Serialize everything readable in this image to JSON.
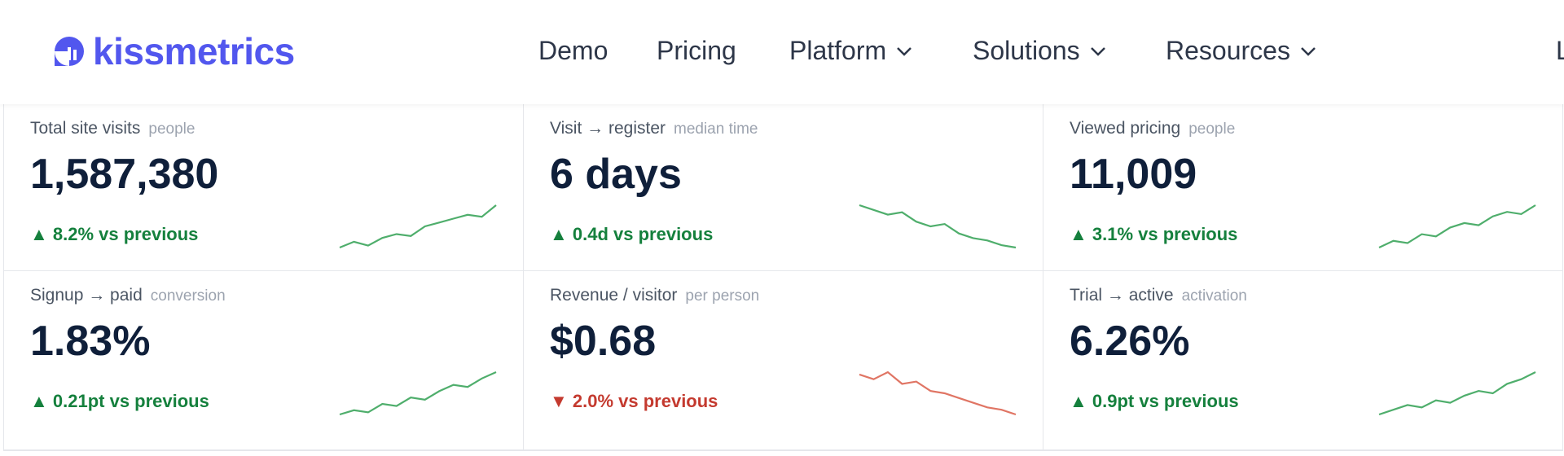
{
  "nav": {
    "brand": "kissmetrics",
    "links": [
      "Demo",
      "Pricing",
      "Platform",
      "Solutions",
      "Resources"
    ],
    "dropdowns": [
      false,
      false,
      true,
      true,
      true
    ],
    "cut_link": "L"
  },
  "cards": [
    {
      "label": "Total site visits",
      "sublabel": "people",
      "value": "1,587,380",
      "delta": "▲ 8.2% vs previous",
      "trend": "up",
      "spark": [
        2,
        5,
        3,
        7,
        9,
        8,
        13,
        15,
        17,
        19,
        18,
        24
      ]
    },
    {
      "label": "Visit → register",
      "sublabel": "median time",
      "value": "6 days",
      "delta": "▲ 0.4d vs previous",
      "trend": "up",
      "spark": [
        20,
        18,
        16,
        17,
        13,
        11,
        12,
        8,
        6,
        5,
        3,
        2
      ]
    },
    {
      "label": "Viewed pricing",
      "sublabel": "people",
      "value": "11,009",
      "delta": "▲ 3.1% vs previous",
      "trend": "up",
      "spark": [
        2,
        5,
        4,
        8,
        7,
        11,
        13,
        12,
        16,
        18,
        17,
        21
      ]
    },
    {
      "label": "Signup → paid",
      "sublabel": "conversion",
      "value": "1.83%",
      "delta": "▲ 0.21pt vs previous",
      "trend": "up",
      "spark": [
        1,
        3,
        2,
        6,
        5,
        9,
        8,
        12,
        15,
        14,
        18,
        21
      ]
    },
    {
      "label": "Revenue / visitor",
      "sublabel": "per person",
      "value": "$0.68",
      "delta": "▼ 2.0% vs previous",
      "trend": "down",
      "spark": [
        20,
        18,
        21,
        16,
        17,
        13,
        12,
        10,
        8,
        6,
        5,
        3
      ]
    },
    {
      "label": "Trial → active",
      "sublabel": "activation",
      "value": "6.26%",
      "delta": "▲ 0.9pt vs previous",
      "trend": "up",
      "spark": [
        1,
        3,
        5,
        4,
        7,
        6,
        9,
        11,
        10,
        14,
        16,
        19
      ]
    }
  ]
}
